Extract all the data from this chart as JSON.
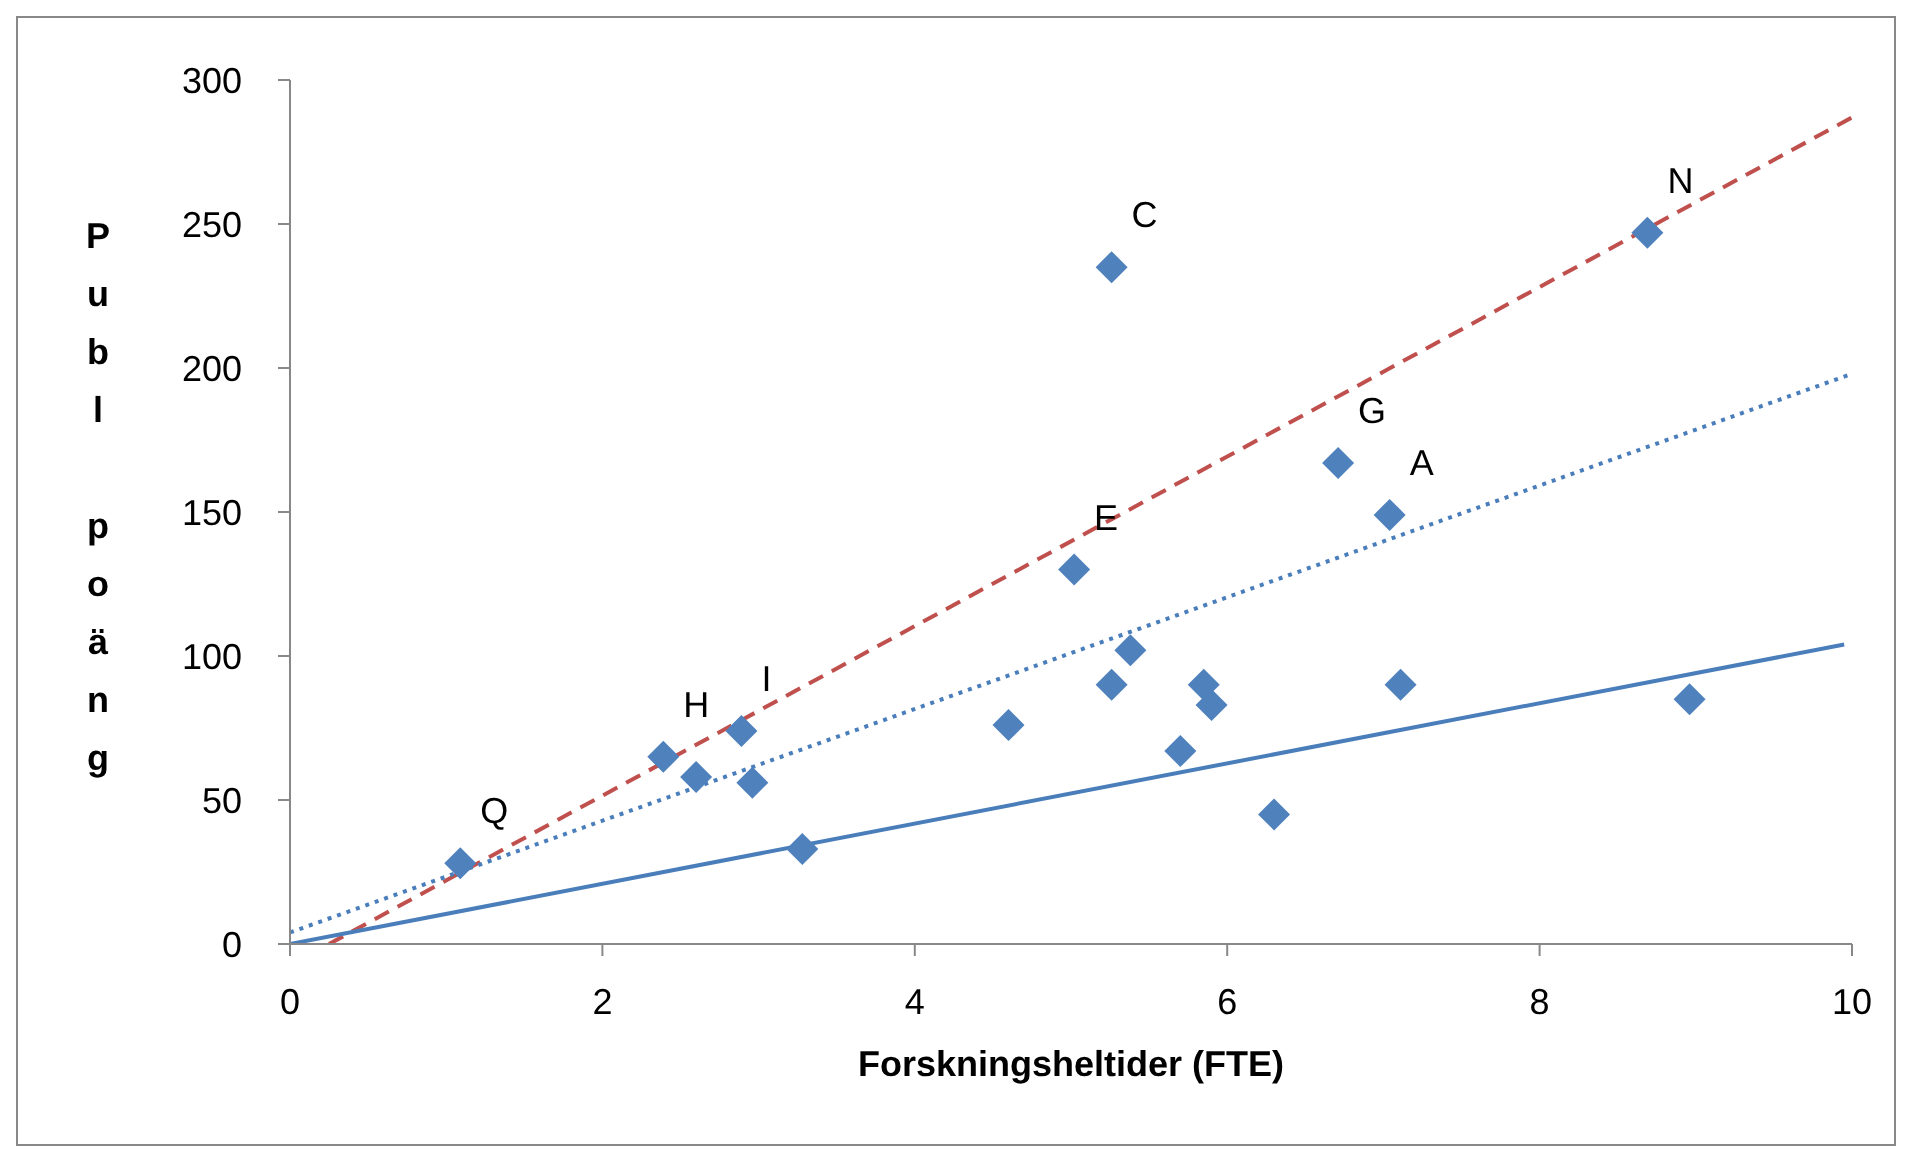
{
  "chart_data": {
    "type": "scatter",
    "xlabel": "Forskningsheltider (FTE)",
    "ylabel": "Publ poäng",
    "xlim": [
      0,
      10
    ],
    "ylim": [
      0,
      300
    ],
    "xticks": [
      0,
      2,
      4,
      6,
      8,
      10
    ],
    "yticks": [
      0,
      50,
      100,
      150,
      200,
      250,
      300
    ],
    "grid": false,
    "legend": false,
    "marker": "diamond",
    "series": [
      {
        "color": "#4f81bd",
        "x": [
          1.09,
          2.39,
          2.6,
          2.89,
          2.96,
          3.28,
          4.6,
          5.02,
          5.38,
          5.26,
          5.26,
          5.7,
          5.85,
          5.9,
          6.3,
          6.71,
          7.04,
          7.11,
          8.69,
          8.96
        ],
        "values": [
          28,
          65,
          58,
          74,
          56,
          33,
          76,
          130,
          102,
          90,
          235,
          67,
          90,
          83,
          45,
          167,
          149,
          90,
          247,
          85
        ]
      },
      {
        "type": "line",
        "color": "#c0504d",
        "line_style": "dashed",
        "marker": "none",
        "x": [
          0.25,
          10
        ],
        "values": [
          0,
          287
        ]
      },
      {
        "type": "line",
        "color": "#4a7ebb",
        "line_style": "dotted",
        "marker": "none",
        "x": [
          0,
          10
        ],
        "values": [
          4,
          198
        ]
      },
      {
        "type": "line",
        "color": "#4a7ebb",
        "line_style": "solid",
        "marker": "none",
        "x": [
          0,
          9.95
        ],
        "values": [
          0,
          104
        ]
      }
    ],
    "annotations": [
      {
        "text": "Q",
        "x": 1.09,
        "y": 28
      },
      {
        "text": "H",
        "x": 2.39,
        "y": 65
      },
      {
        "text": "I",
        "x": 2.89,
        "y": 74
      },
      {
        "text": "E",
        "x": 5.02,
        "y": 130
      },
      {
        "text": "C",
        "x": 5.26,
        "y": 235
      },
      {
        "text": "G",
        "x": 6.71,
        "y": 167
      },
      {
        "text": "A",
        "x": 7.04,
        "y": 149
      },
      {
        "text": "N",
        "x": 8.69,
        "y": 247
      }
    ]
  }
}
